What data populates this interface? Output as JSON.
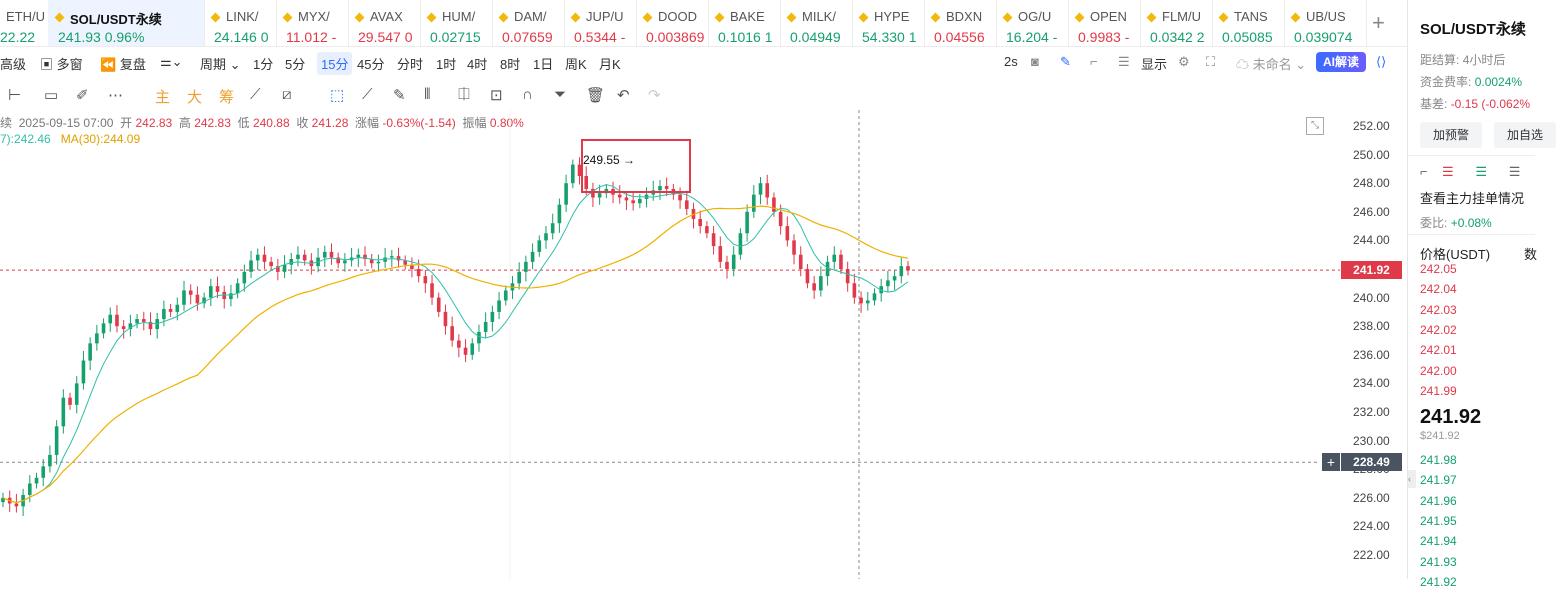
{
  "tabs": [
    {
      "name": "ETH/U",
      "price": "22.22",
      "dir": "up",
      "active": false
    },
    {
      "name": "SOL/USDT永续",
      "price": "241.93  0.96%",
      "dir": "up",
      "active": true
    },
    {
      "name": "LINK/",
      "price": "24.146  0",
      "dir": "up",
      "active": false
    },
    {
      "name": "MYX/",
      "price": "11.012  -",
      "dir": "down",
      "active": false
    },
    {
      "name": "AVAX",
      "price": "29.547  0",
      "dir": "down",
      "active": false
    },
    {
      "name": "HUM/",
      "price": "0.02715",
      "dir": "up",
      "active": false
    },
    {
      "name": "DAM/",
      "price": "0.07659",
      "dir": "down",
      "active": false
    },
    {
      "name": "JUP/U",
      "price": "0.5344  -",
      "dir": "down",
      "active": false
    },
    {
      "name": "DOOD",
      "price": "0.003869",
      "dir": "down",
      "active": false
    },
    {
      "name": "BAKE",
      "price": "0.1016  1",
      "dir": "up",
      "active": false
    },
    {
      "name": "MILK/",
      "price": "0.04949",
      "dir": "up",
      "active": false
    },
    {
      "name": "HYPE",
      "price": "54.330  1",
      "dir": "up",
      "active": false
    },
    {
      "name": "BDXN",
      "price": "0.04556",
      "dir": "down",
      "active": false
    },
    {
      "name": "OG/U",
      "price": "16.204  -",
      "dir": "up",
      "active": false
    },
    {
      "name": "OPEN",
      "price": "0.9983  -",
      "dir": "down",
      "active": false
    },
    {
      "name": "FLM/U",
      "price": "0.0342  2",
      "dir": "up",
      "active": false
    },
    {
      "name": "TANS",
      "price": "0.05085",
      "dir": "up",
      "active": false
    },
    {
      "name": "UB/US",
      "price": "0.039074",
      "dir": "up",
      "active": false
    }
  ],
  "toolbar": {
    "advanced": "高级",
    "multi_window": "多窗",
    "replay": "复盘",
    "period": "周期",
    "intervals": [
      "1分",
      "5分",
      "15分",
      "45分",
      "分时",
      "1时",
      "4时",
      "8时",
      "1日",
      "周K",
      "月K"
    ],
    "active_interval": "15分",
    "refresh": "2s",
    "display": "显示",
    "layout_name": "未命名",
    "ai": "AI解读"
  },
  "indicators": {
    "main": "主",
    "big": "大",
    "chips": "筹"
  },
  "ohlc": {
    "symbol_suffix": "续",
    "date": "2025-09-15 07:00",
    "open_label": "开",
    "open": "242.83",
    "high_label": "高",
    "high": "242.83",
    "low_label": "低",
    "low": "240.88",
    "close_label": "收",
    "close": "241.28",
    "change_label": "涨幅",
    "change": "-0.63%(-1.54)",
    "amp_label": "振幅",
    "amp": "0.80%"
  },
  "ma": {
    "ma7": "7):242.46",
    "ma30": "MA(30):244.09"
  },
  "colors": {
    "up": "#15a06c",
    "down": "#e0394a",
    "ma7": "#2fc0a8",
    "ma30": "#f0b000",
    "accent": "#2f6bff",
    "highlight_box": "#e0394a"
  },
  "chart_data": {
    "type": "candlestick",
    "interval": "15分",
    "y_ticks": [
      252.0,
      250.0,
      248.0,
      246.0,
      244.0,
      242.0,
      240.0,
      238.0,
      236.0,
      234.0,
      232.0,
      230.0,
      228.0,
      226.0,
      224.0,
      222.0
    ],
    "ylim": [
      221.0,
      253.0
    ],
    "current_price": "241.92",
    "crosshair_price": "228.49",
    "high_annotation": "249.55",
    "closes": [
      226.0,
      225.6,
      225.4,
      226.2,
      227.0,
      227.4,
      228.2,
      229.0,
      231.0,
      233.0,
      232.5,
      234.0,
      235.6,
      236.8,
      237.5,
      238.2,
      238.8,
      238.0,
      237.8,
      238.2,
      238.5,
      238.3,
      237.8,
      238.5,
      239.2,
      239.0,
      239.5,
      240.5,
      240.2,
      239.6,
      240.0,
      240.8,
      240.4,
      239.9,
      240.3,
      241.0,
      241.8,
      242.6,
      243.0,
      242.5,
      242.2,
      241.8,
      242.3,
      242.7,
      243.0,
      242.6,
      242.2,
      242.8,
      243.2,
      242.8,
      242.4,
      242.6,
      242.8,
      243.0,
      242.7,
      242.4,
      242.5,
      242.8,
      242.9,
      242.6,
      242.3,
      242.0,
      241.5,
      241.0,
      240.0,
      239.0,
      238.0,
      237.0,
      236.5,
      236.0,
      236.8,
      237.6,
      238.3,
      239.0,
      239.8,
      240.5,
      241.0,
      241.8,
      242.5,
      243.2,
      244.0,
      244.5,
      245.2,
      246.5,
      248.0,
      249.3,
      248.5,
      247.6,
      247.0,
      247.3,
      247.6,
      247.2,
      247.0,
      246.8,
      246.6,
      246.9,
      247.2,
      247.5,
      247.8,
      247.6,
      247.2,
      246.8,
      246.2,
      245.5,
      245.0,
      244.5,
      243.6,
      242.5,
      242.0,
      243.0,
      244.5,
      246.0,
      247.2,
      248.0,
      247.0,
      246.0,
      245.0,
      244.0,
      243.0,
      242.0,
      241.0,
      240.5,
      241.5,
      242.5,
      243.0,
      242.0,
      241.0,
      240.0,
      239.6,
      239.8,
      240.3,
      240.8,
      241.2,
      241.5,
      242.2,
      241.9
    ]
  },
  "sidebar": {
    "title": "SOL/USDT永续",
    "settlement_label": "距结算:",
    "settlement": "4小时后",
    "funding_label": "资金费率:",
    "funding": "0.0024%",
    "basis_label": "基差:",
    "basis": "-0.15 (-0.062%",
    "alert_btn": "加预警",
    "watch_btn": "加自选",
    "depth_title": "查看主力挂单情况",
    "ratio_label": "委比:",
    "ratio": "+0.08%",
    "price_header": "价格(USDT)",
    "qty_header": "数",
    "asks": [
      "242.05",
      "242.04",
      "242.03",
      "242.02",
      "242.01",
      "242.00",
      "241.99"
    ],
    "last": "241.92",
    "last_usd": "$241.92",
    "bids": [
      "241.98",
      "241.97",
      "241.96",
      "241.95",
      "241.94",
      "241.93",
      "241.92"
    ]
  }
}
